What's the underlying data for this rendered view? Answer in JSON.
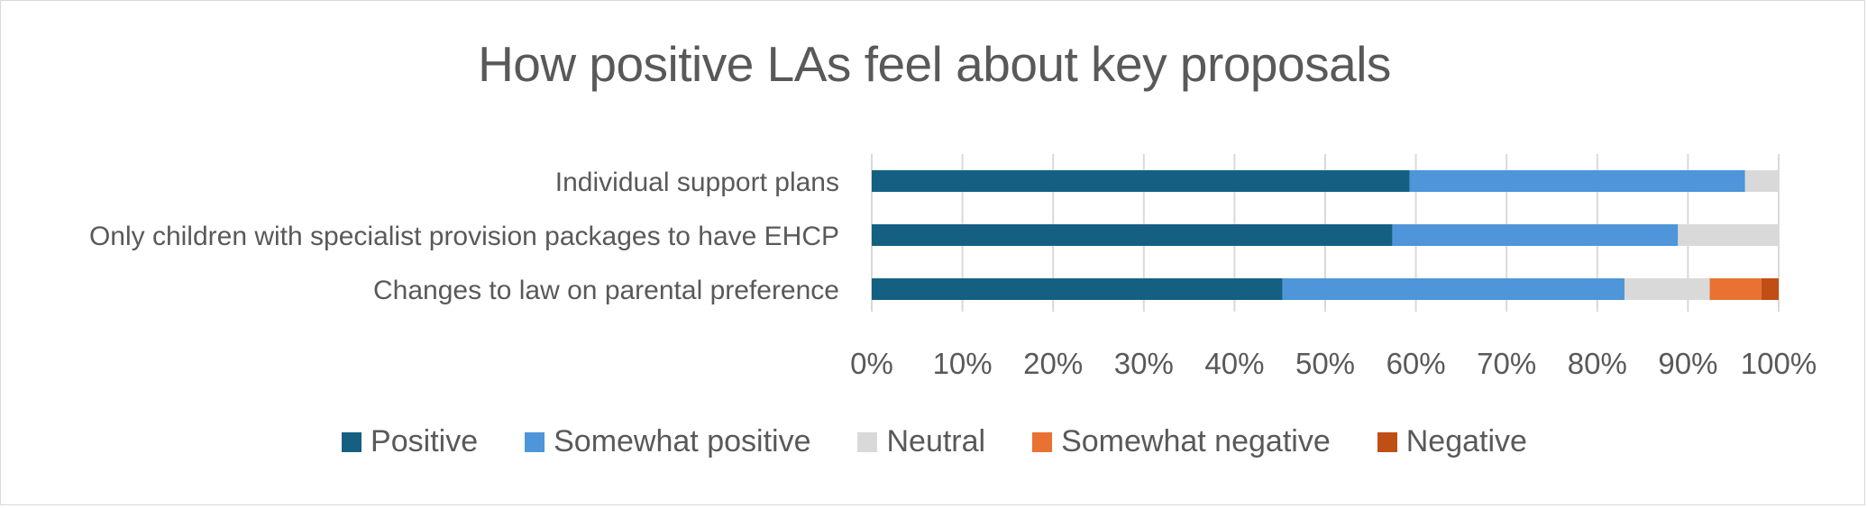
{
  "chart_data": {
    "type": "bar",
    "orientation": "horizontal",
    "stacked": "percent",
    "title": "How positive LAs feel about key proposals",
    "xlabel": "",
    "ylabel": "",
    "categories": [
      "Individual support plans",
      "Only children with specialist provision packages to have EHCP",
      "Changes to law on parental preference"
    ],
    "series": [
      {
        "name": "Positive",
        "color": "#156082",
        "values": [
          59.3,
          57.4,
          45.3
        ]
      },
      {
        "name": "Somewhat positive",
        "color": "#4e95d9",
        "values": [
          37.0,
          31.5,
          37.7
        ]
      },
      {
        "name": "Neutral",
        "color": "#d9d9d9",
        "values": [
          3.7,
          11.1,
          9.4
        ]
      },
      {
        "name": "Somewhat negative",
        "color": "#e97132",
        "values": [
          0,
          0,
          5.7
        ]
      },
      {
        "name": "Negative",
        "color": "#c04f15",
        "values": [
          0,
          0,
          1.9
        ]
      }
    ],
    "xlim": [
      0,
      100
    ],
    "xticks": [
      "0%",
      "10%",
      "20%",
      "30%",
      "40%",
      "50%",
      "60%",
      "70%",
      "80%",
      "90%",
      "100%"
    ],
    "grid": true,
    "legend_position": "bottom"
  }
}
